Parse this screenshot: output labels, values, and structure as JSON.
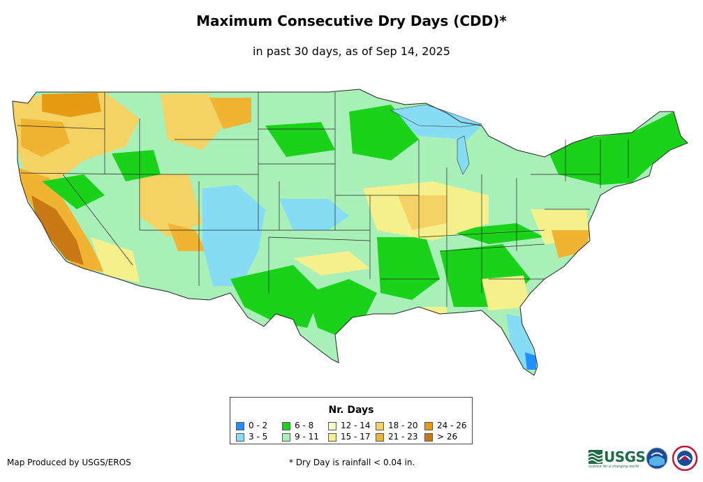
{
  "header": {
    "title": "Maximum Consecutive Dry Days (CDD)*",
    "subtitle": "in past 30 days, as of Sep 14, 2025"
  },
  "map": {
    "region": "Contiguous United States",
    "description_layer": "CDD gridded values by state"
  },
  "legend": {
    "title": "Nr. Days",
    "items": [
      {
        "label": "0 - 2",
        "color": "#1e90ff"
      },
      {
        "label": "3 - 5",
        "color": "#87dcf5"
      },
      {
        "label": "6 - 8",
        "color": "#19d219"
      },
      {
        "label": "9 - 11",
        "color": "#a8f0b8"
      },
      {
        "label": "12 - 14",
        "color": "#fafac8"
      },
      {
        "label": "15 - 17",
        "color": "#f5f08c"
      },
      {
        "label": "18 - 20",
        "color": "#f5d264"
      },
      {
        "label": "21 - 23",
        "color": "#f0b432"
      },
      {
        "label": "24 - 26",
        "color": "#e69b14"
      },
      {
        "label": "> 26",
        "color": "#c87814"
      }
    ]
  },
  "footer": {
    "credit": "Map Produced by USGS/EROS",
    "note": "* Dry Day is rainfall < 0.04 in."
  },
  "logos": {
    "usgs_word": "USGS",
    "usgs_tagline": "science for a changing world"
  }
}
